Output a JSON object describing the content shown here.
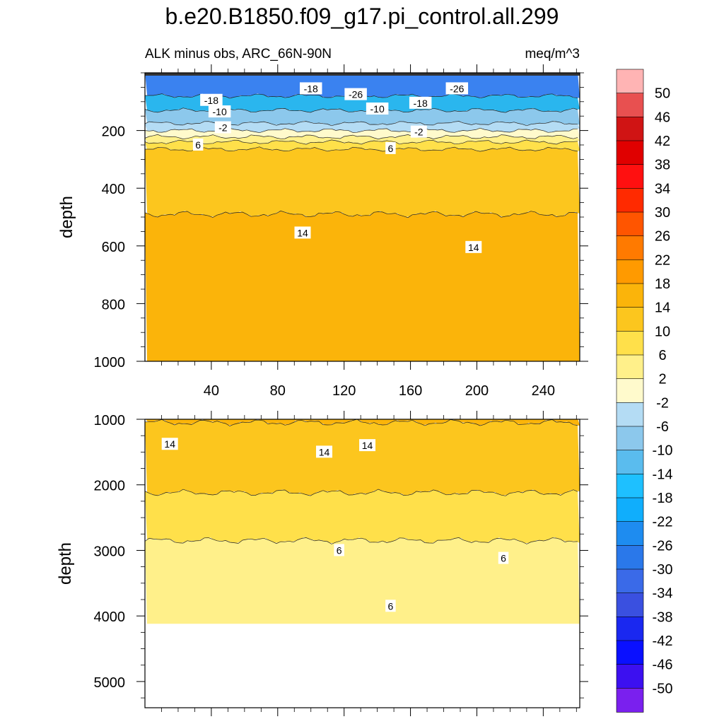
{
  "figure": {
    "title": "b.e20.B1850.f09_g17.pi_control.all.299",
    "subtitle_left": "ALK minus obs, ARC_66N-90N",
    "subtitle_right": "meq/m^3"
  },
  "chart_data": [
    {
      "type": "contour",
      "panel": "upper",
      "xlabel": "",
      "ylabel": "depth",
      "xlim": [
        0,
        262
      ],
      "ylim": [
        1000,
        0
      ],
      "xticks": [
        40,
        80,
        120,
        160,
        200,
        240
      ],
      "yticks": [
        200,
        400,
        600,
        800,
        1000
      ],
      "bands": [
        {
          "y_top": 0,
          "y_bottom": 80,
          "value": -26,
          "color": "#3a82f0"
        },
        {
          "y_top": 80,
          "y_bottom": 130,
          "value": -14,
          "color": "#2ab6ee"
        },
        {
          "y_top": 130,
          "y_bottom": 175,
          "value": -10,
          "color": "#8cc8ec"
        },
        {
          "y_top": 175,
          "y_bottom": 200,
          "value": -6,
          "color": "#b4dcf4"
        },
        {
          "y_top": 200,
          "y_bottom": 222,
          "value": -2,
          "color": "#fffacc"
        },
        {
          "y_top": 222,
          "y_bottom": 240,
          "value": 2,
          "color": "#fff08a"
        },
        {
          "y_top": 240,
          "y_bottom": 265,
          "value": 6,
          "color": "#ffe04a"
        },
        {
          "y_top": 265,
          "y_bottom": 490,
          "value": 10,
          "color": "#fcc61e"
        },
        {
          "y_top": 490,
          "y_bottom": 1000,
          "value": 14,
          "color": "#fbb40a"
        }
      ],
      "contour_labels": [
        {
          "x": 45,
          "y": 135,
          "text": "-10"
        },
        {
          "x": 40,
          "y": 95,
          "text": "-18"
        },
        {
          "x": 100,
          "y": 55,
          "text": "-18"
        },
        {
          "x": 127,
          "y": 75,
          "text": "-26"
        },
        {
          "x": 140,
          "y": 125,
          "text": "-10"
        },
        {
          "x": 166,
          "y": 105,
          "text": "-18"
        },
        {
          "x": 188,
          "y": 55,
          "text": "-26"
        },
        {
          "x": 47,
          "y": 190,
          "text": "-2"
        },
        {
          "x": 165,
          "y": 205,
          "text": "-2"
        },
        {
          "x": 32,
          "y": 250,
          "text": "6"
        },
        {
          "x": 148,
          "y": 262,
          "text": "6"
        },
        {
          "x": 95,
          "y": 555,
          "text": "14"
        },
        {
          "x": 198,
          "y": 605,
          "text": "14"
        }
      ]
    },
    {
      "type": "contour",
      "panel": "lower",
      "xlabel": "",
      "ylabel": "depth",
      "xlim": [
        0,
        262
      ],
      "ylim": [
        5400,
        1000
      ],
      "yticks": [
        1000,
        2000,
        3000,
        4000,
        5000
      ],
      "data_bottom": 4120,
      "bands": [
        {
          "y_top": 1000,
          "y_bottom": 1050,
          "value": 14,
          "color": "#fbb40a"
        },
        {
          "y_top": 1050,
          "y_bottom": 2120,
          "value": 10,
          "color": "#fcc61e"
        },
        {
          "y_top": 2120,
          "y_bottom": 2850,
          "value": 6,
          "color": "#ffe04a"
        },
        {
          "y_top": 2850,
          "y_bottom": 4120,
          "value": 2,
          "color": "#fff08a"
        }
      ],
      "contour_labels": [
        {
          "x": 15,
          "y": 1380,
          "text": "14"
        },
        {
          "x": 108,
          "y": 1500,
          "text": "14"
        },
        {
          "x": 134,
          "y": 1400,
          "text": "14"
        },
        {
          "x": 117,
          "y": 3000,
          "text": "6"
        },
        {
          "x": 216,
          "y": 3120,
          "text": "6"
        },
        {
          "x": 148,
          "y": 3850,
          "text": "6"
        }
      ]
    }
  ],
  "colorbar": {
    "labels": [
      "50",
      "46",
      "42",
      "38",
      "34",
      "30",
      "26",
      "22",
      "18",
      "14",
      "10",
      "6",
      "2",
      "-2",
      "-6",
      "-10",
      "-14",
      "-18",
      "-22",
      "-26",
      "-30",
      "-34",
      "-38",
      "-42",
      "-46",
      "-50"
    ],
    "colors": [
      "#ffb4b4",
      "#e85050",
      "#d01414",
      "#e00000",
      "#ff1010",
      "#ff2a00",
      "#ff5500",
      "#ff7a00",
      "#ff9a00",
      "#fbb40a",
      "#fcc61e",
      "#ffe04a",
      "#fff08a",
      "#fffacc",
      "#b4dcf4",
      "#8cc8ec",
      "#5abcee",
      "#1ec0ff",
      "#10aefc",
      "#1e8cf0",
      "#2a78ea",
      "#3a6ae8",
      "#3a50e0",
      "#1a28f0",
      "#0a10ff",
      "#3c10f0",
      "#7a20ee"
    ]
  }
}
